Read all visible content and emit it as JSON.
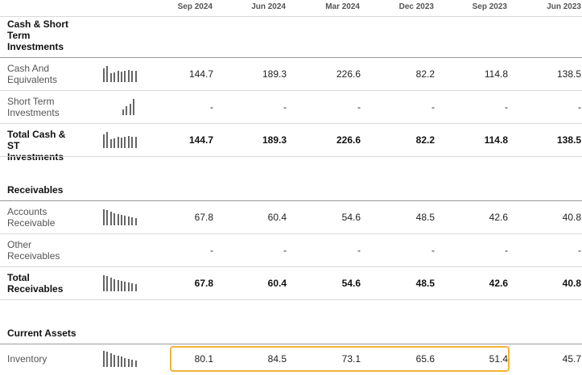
{
  "columns": [
    "Sep 2024",
    "Jun 2024",
    "Mar 2024",
    "Dec 2023",
    "Sep 2023",
    "Jun 2023"
  ],
  "sections": {
    "cash": {
      "title": "Cash & Short Term Investments",
      "rows": {
        "cash_equivalents": {
          "label": "Cash And Equivalents",
          "values": [
            "144.7",
            "189.3",
            "226.6",
            "82.2",
            "114.8",
            "138.5"
          ]
        },
        "short_term": {
          "label": "Short Term Investments",
          "values": [
            "-",
            "-",
            "-",
            "-",
            "-",
            "-"
          ]
        },
        "total": {
          "label": "Total Cash & ST Investments",
          "values": [
            "144.7",
            "189.3",
            "226.6",
            "82.2",
            "114.8",
            "138.5"
          ]
        }
      }
    },
    "receivables": {
      "title": "Receivables",
      "rows": {
        "accounts": {
          "label": "Accounts Receivable",
          "values": [
            "67.8",
            "60.4",
            "54.6",
            "48.5",
            "42.6",
            "40.8"
          ]
        },
        "other": {
          "label": "Other Receivables",
          "values": [
            "-",
            "-",
            "-",
            "-",
            "-",
            "-"
          ]
        },
        "total": {
          "label": "Total Receivables",
          "values": [
            "67.8",
            "60.4",
            "54.6",
            "48.5",
            "42.6",
            "40.8"
          ]
        }
      }
    },
    "current_assets": {
      "title": "Current Assets",
      "rows": {
        "inventory": {
          "label": "Inventory",
          "values": [
            "80.1",
            "84.5",
            "73.1",
            "65.6",
            "51.4",
            "45.7"
          ]
        }
      }
    }
  },
  "sparklines": {
    "cash_equivalents": [
      0.85,
      1.0,
      0.55,
      0.6,
      0.7,
      0.65,
      0.7,
      0.75,
      0.7,
      0.7
    ],
    "short_term": [
      0.35,
      0.55,
      0.7,
      1.0
    ],
    "total_cash": [
      0.85,
      1.0,
      0.55,
      0.6,
      0.7,
      0.65,
      0.7,
      0.75,
      0.7,
      0.7
    ],
    "accounts": [
      1.0,
      0.95,
      0.85,
      0.75,
      0.7,
      0.65,
      0.6,
      0.55,
      0.5,
      0.45
    ],
    "total_receivables": [
      1.0,
      0.95,
      0.85,
      0.75,
      0.7,
      0.65,
      0.6,
      0.55,
      0.5,
      0.45
    ],
    "inventory": [
      1.0,
      0.95,
      0.85,
      0.75,
      0.7,
      0.65,
      0.55,
      0.5,
      0.45,
      0.4
    ]
  },
  "colors": {
    "highlight": "#f4b43a"
  }
}
